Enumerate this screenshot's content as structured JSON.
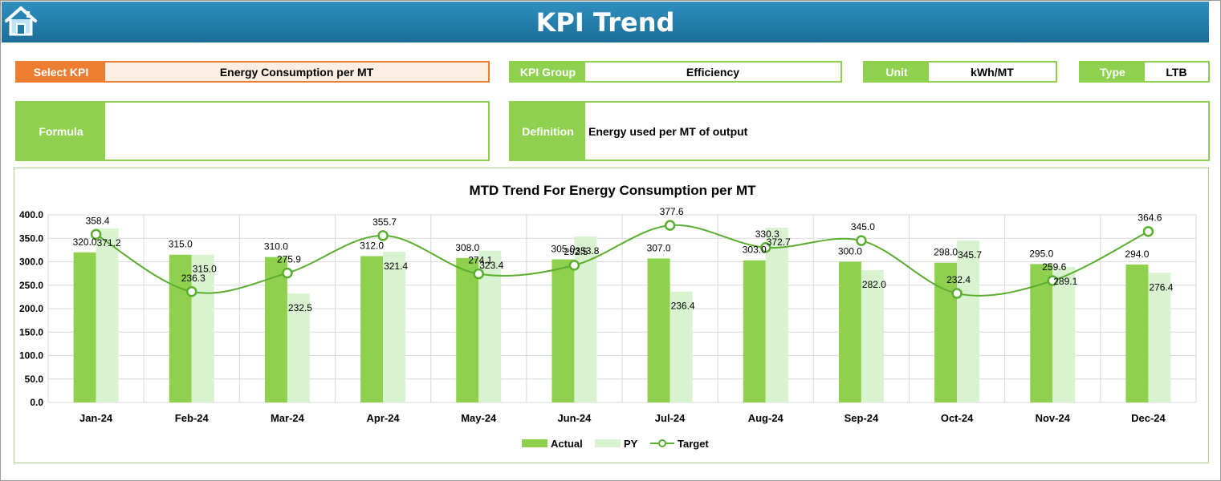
{
  "header": {
    "title": "KPI Trend"
  },
  "fields": {
    "select_kpi_label": "Select KPI",
    "select_kpi_value": "Energy Consumption per MT",
    "kpi_group_label": "KPI Group",
    "kpi_group_value": "Efficiency",
    "unit_label": "Unit",
    "unit_value": "kWh/MT",
    "type_label": "Type",
    "type_value": "LTB",
    "formula_label": "Formula",
    "formula_value": "",
    "definition_label": "Definition",
    "definition_value": "Energy used per MT of output"
  },
  "colors": {
    "header": "#1f7aa8",
    "actual": "#8fd14f",
    "py": "#d9f2d0",
    "target": "#5aae2e",
    "accent_orange": "#ed7d31"
  },
  "chart_data": {
    "type": "bar",
    "title": "MTD Trend For Energy Consumption per MT",
    "categories": [
      "Jan-24",
      "Feb-24",
      "Mar-24",
      "Apr-24",
      "May-24",
      "Jun-24",
      "Jul-24",
      "Aug-24",
      "Sep-24",
      "Oct-24",
      "Nov-24",
      "Dec-24"
    ],
    "series": [
      {
        "name": "Actual",
        "type": "bar",
        "values": [
          320.0,
          315.0,
          310.0,
          312.0,
          308.0,
          305.0,
          307.0,
          303.0,
          300.0,
          298.0,
          295.0,
          294.0
        ],
        "labels": [
          "320.0",
          "315.0",
          "310.0",
          "312.0",
          "308.0",
          "305.0",
          "307.0",
          "303.0",
          "300.0",
          "298.0",
          "295.0",
          "294.0"
        ]
      },
      {
        "name": "PY",
        "type": "bar",
        "values": [
          371.2,
          315.0,
          232.5,
          321.4,
          323.4,
          353.8,
          236.4,
          372.7,
          282.0,
          345.7,
          289.1,
          276.4
        ],
        "labels": [
          "371.2",
          "315.0",
          "232.5",
          "321.4",
          "323.4",
          "353.8",
          "236.4",
          "372.7",
          "282.0",
          "345.7",
          "289.1",
          "276.4"
        ]
      },
      {
        "name": "Target",
        "type": "line",
        "values": [
          358.4,
          236.3,
          275.9,
          355.7,
          274.1,
          292.5,
          377.6,
          330.3,
          345.0,
          232.4,
          259.6,
          364.6
        ],
        "labels": [
          "358.4",
          "236.3",
          "275.9",
          "355.7",
          "274.1",
          "292.5",
          "377.6",
          "330.3",
          "345.0",
          "232.4",
          "259.6",
          "364.6"
        ]
      }
    ],
    "y_ticks": [
      "400.0",
      "350.0",
      "300.0",
      "250.0",
      "200.0",
      "150.0",
      "100.0",
      "50.0",
      "0.0"
    ],
    "ylim": [
      0,
      400
    ],
    "grid": true,
    "legend": "bottom-center"
  }
}
